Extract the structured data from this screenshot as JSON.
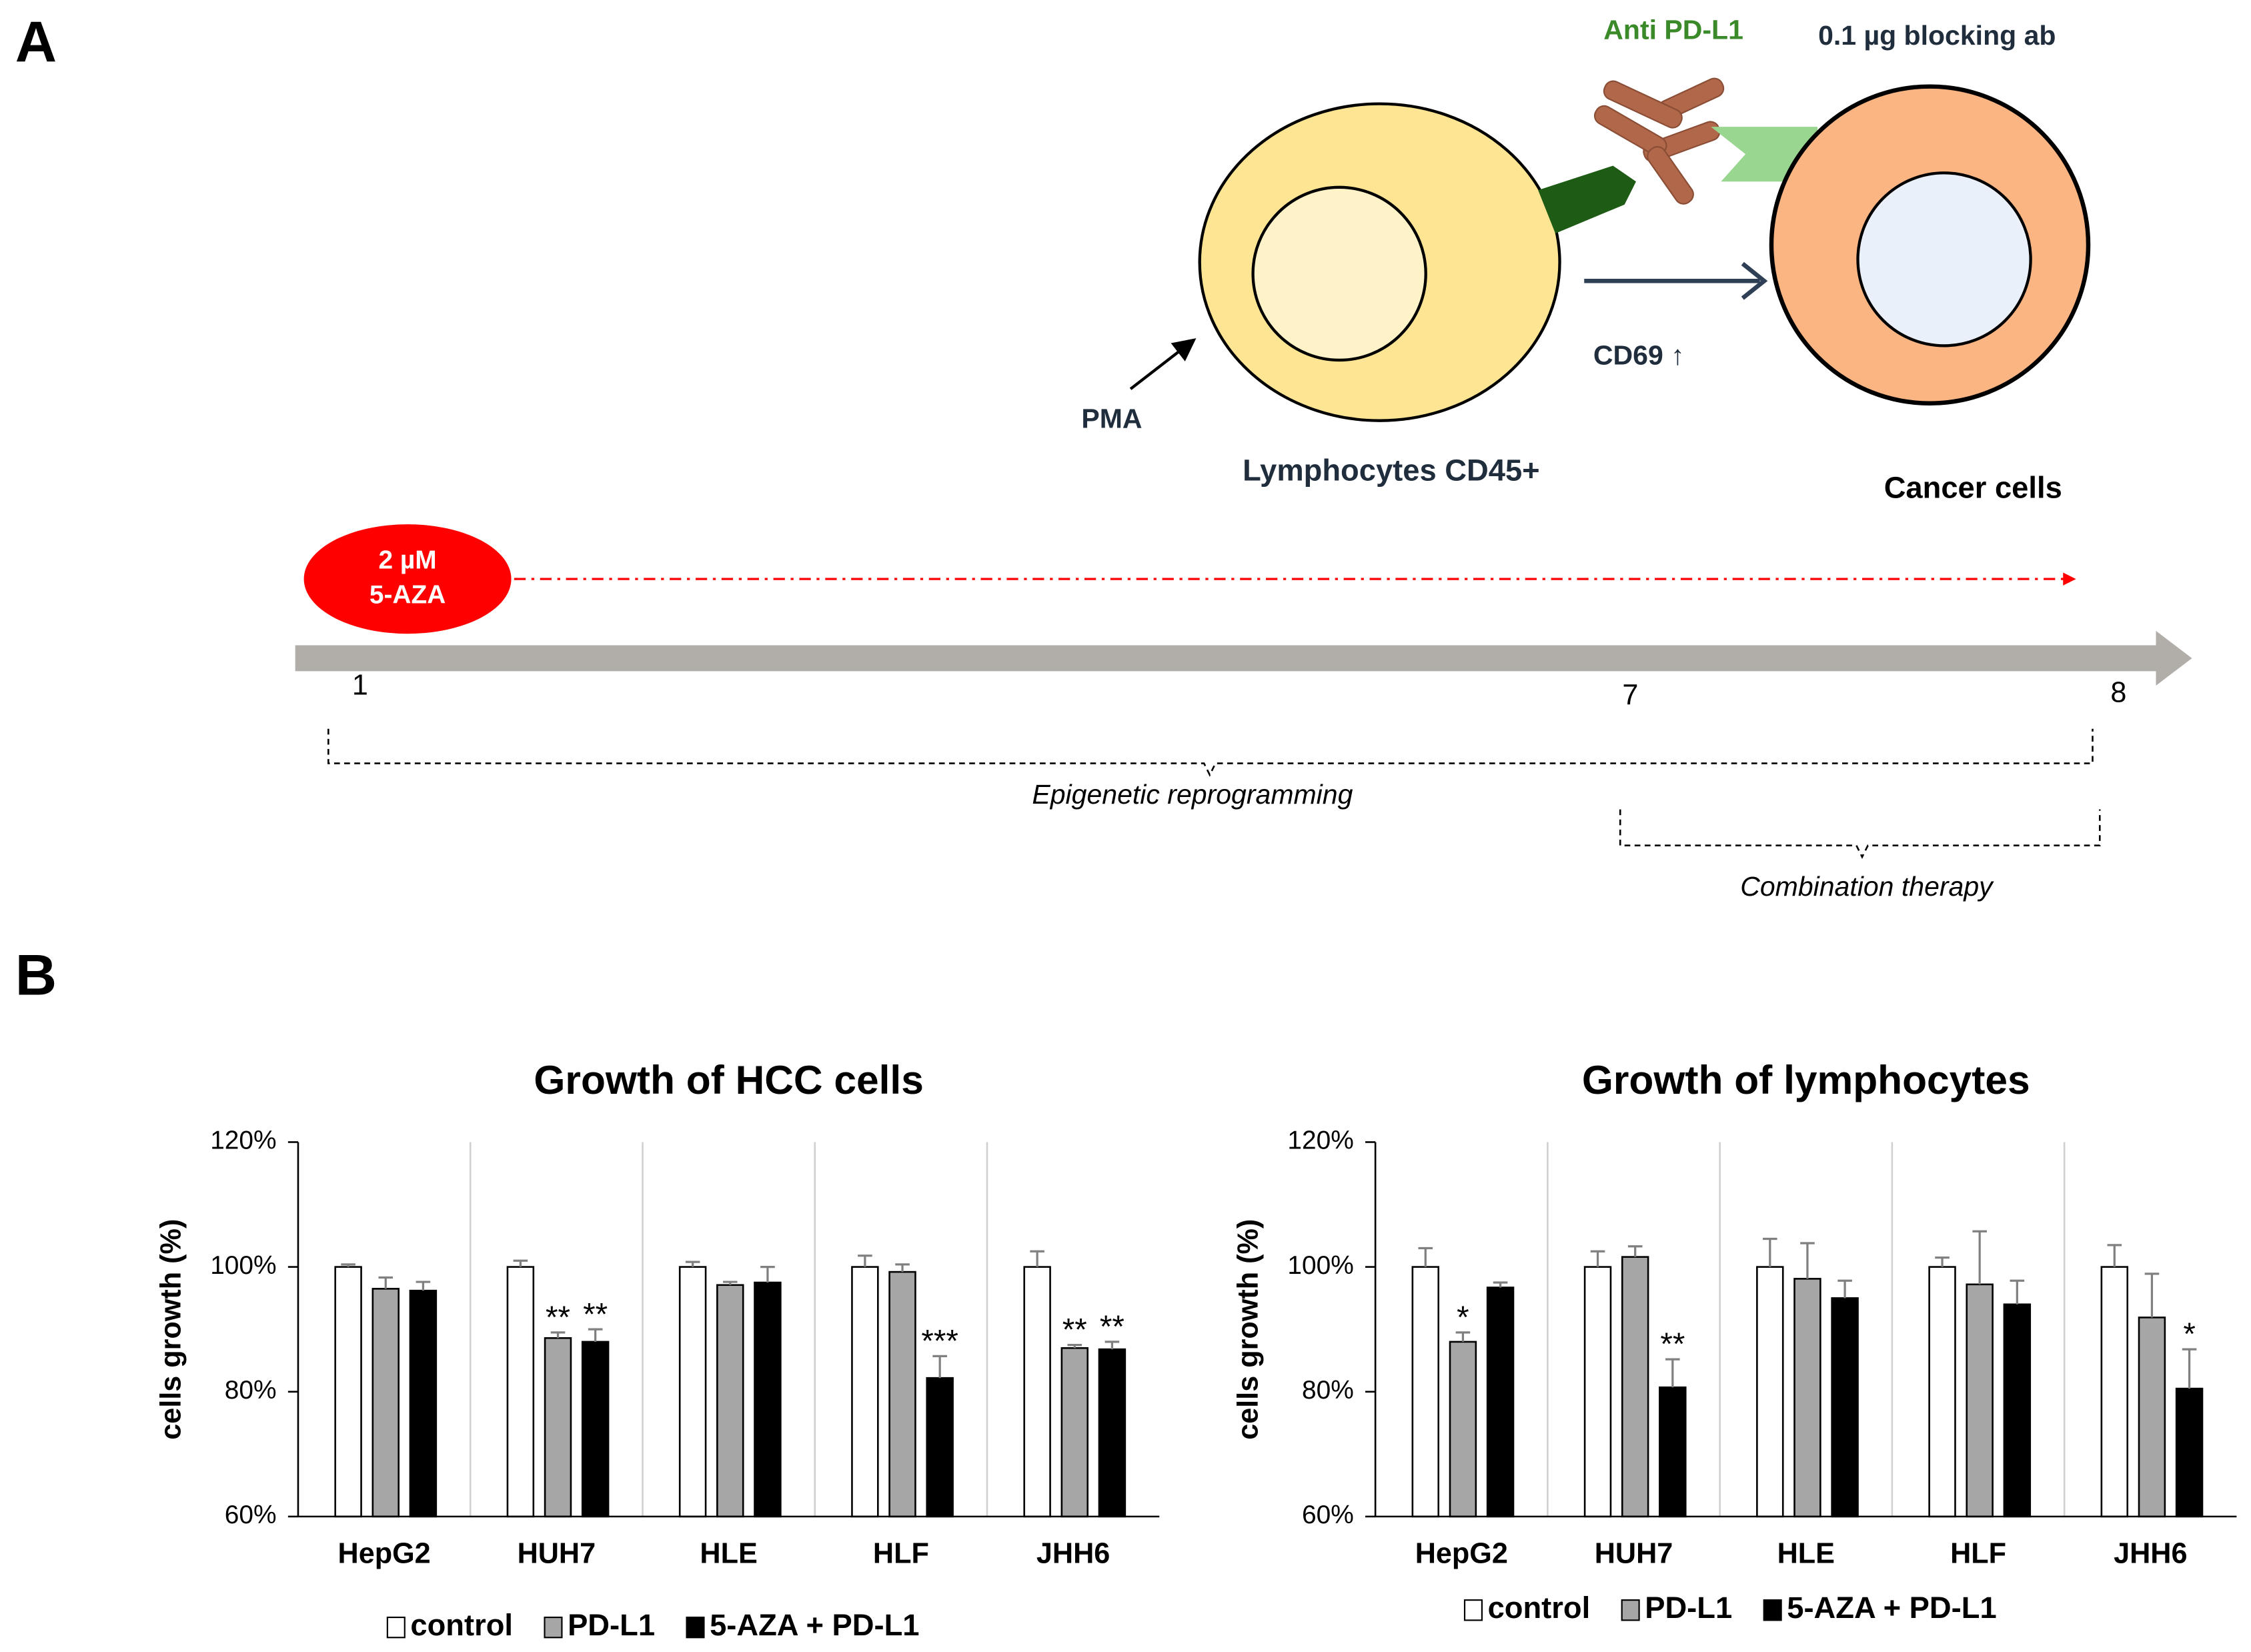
{
  "panel_a": {
    "label": "A",
    "anti_pdl1": "Anti PD-L1",
    "blocking": "0.1 µg blocking ab",
    "pma": "PMA",
    "cd69": "CD69 ↑",
    "lymphocytes": "Lymphocytes CD45+",
    "cancer": "Cancer cells",
    "drug": [
      "2 µM",
      "5-AZA"
    ],
    "days": [
      1,
      7,
      8
    ],
    "epigenetic": "Epigenetic reprogramming",
    "combination": "Combination therapy"
  },
  "panel_b": {
    "label": "B"
  },
  "chart_data": [
    {
      "type": "bar",
      "title": "Growth of HCC cells",
      "y_label": "cells growth (%)",
      "categories": [
        "HepG2",
        "HUH7",
        "HLE",
        "HLF",
        "JHH6"
      ],
      "ylim": [
        60,
        120
      ],
      "yticks": [
        {
          "value": 60,
          "label": "60%"
        },
        {
          "value": 80,
          "label": "80%"
        },
        {
          "value": 100,
          "label": "100%"
        },
        {
          "value": 120,
          "label": "120%"
        }
      ],
      "category_separators": true,
      "series": [
        {
          "name": "control",
          "color": "#ffffff",
          "values": [
            100,
            100,
            100,
            100,
            100
          ],
          "errors": [
            0.4,
            1,
            0.8,
            1.8,
            2.5
          ],
          "significance": [
            null,
            null,
            null,
            null,
            null
          ]
        },
        {
          "name": "PD-L1",
          "color": "#a6a6a6",
          "values": [
            96.5,
            88.6,
            97.1,
            99.2,
            87
          ],
          "errors": [
            1.8,
            0.9,
            0.5,
            1.2,
            0.5
          ],
          "significance": [
            null,
            "**",
            null,
            null,
            "**"
          ]
        },
        {
          "name": "5-AZA + PD-L1",
          "color": "#000000",
          "values": [
            96.2,
            88,
            97.5,
            82.2,
            86.8
          ],
          "errors": [
            1.4,
            2,
            2.5,
            3.5,
            1.2
          ],
          "significance": [
            null,
            "**",
            null,
            "***",
            "**"
          ]
        }
      ]
    },
    {
      "type": "bar",
      "title": "Growth of lymphocytes",
      "y_label": "cells growth (%)",
      "categories": [
        "HepG2",
        "HUH7",
        "HLE",
        "HLF",
        "JHH6"
      ],
      "ylim": [
        60,
        120
      ],
      "yticks": [
        {
          "value": 60,
          "label": "60%"
        },
        {
          "value": 80,
          "label": "80%"
        },
        {
          "value": 100,
          "label": "100%"
        },
        {
          "value": 120,
          "label": "120%"
        }
      ],
      "category_separators": true,
      "series": [
        {
          "name": "control",
          "color": "#ffffff",
          "values": [
            100,
            100,
            100,
            100,
            100
          ],
          "errors": [
            3,
            2.5,
            4.5,
            1.5,
            3.5
          ],
          "significance": [
            null,
            null,
            null,
            null,
            null
          ]
        },
        {
          "name": "PD-L1",
          "color": "#a6a6a6",
          "values": [
            88,
            101.6,
            98.1,
            97.2,
            91.9
          ],
          "errors": [
            1.5,
            1.7,
            5.7,
            8.5,
            7
          ],
          "significance": [
            "*",
            null,
            null,
            null,
            null
          ]
        },
        {
          "name": "5-AZA + PD-L1",
          "color": "#000000",
          "values": [
            96.7,
            80.7,
            95,
            94,
            80.5
          ],
          "errors": [
            0.8,
            4.5,
            2.8,
            3.8,
            6.3
          ],
          "significance": [
            null,
            "**",
            null,
            null,
            "*"
          ]
        }
      ]
    }
  ]
}
